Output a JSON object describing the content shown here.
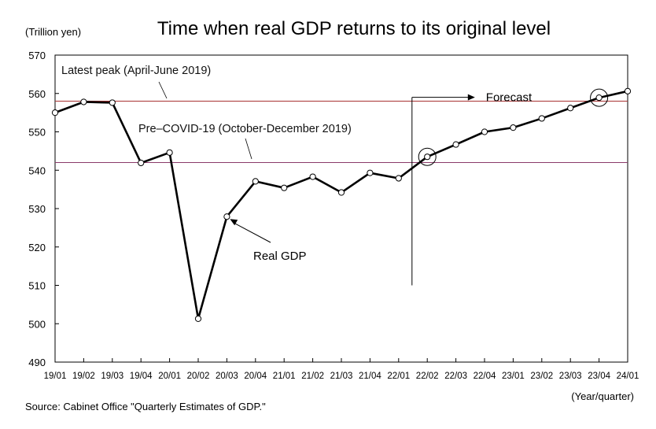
{
  "chart_data": {
    "type": "line",
    "title": "Time when real GDP returns to its original level",
    "ylabel": "(Trillion yen)",
    "xlabel": "(Year/quarter)",
    "ylim": [
      490,
      570
    ],
    "yticks": [
      "570",
      "560",
      "550",
      "540",
      "530",
      "520",
      "510",
      "500",
      "490"
    ],
    "categories": [
      "19/01",
      "19/02",
      "19/03",
      "19/04",
      "20/01",
      "20/02",
      "20/03",
      "20/04",
      "21/01",
      "21/02",
      "21/03",
      "21/04",
      "22/01",
      "22/02",
      "22/03",
      "22/04",
      "23/01",
      "23/02",
      "23/03",
      "23/04",
      "24/01"
    ],
    "series": [
      {
        "name": "Real GDP",
        "values": [
          555.0,
          557.8,
          557.6,
          541.9,
          544.6,
          501.3,
          527.9,
          537.1,
          535.4,
          538.3,
          534.2,
          539.3,
          537.9,
          543.5,
          546.7,
          550.0,
          551.1,
          553.5,
          556.2,
          558.9,
          560.6
        ]
      }
    ],
    "reference_lines": [
      {
        "label": "Latest peak (April-June 2019)",
        "value": 558.0,
        "color": "#a83232"
      },
      {
        "label": "Pre–COVID-19 (October-December 2019)",
        "value": 542.0,
        "color": "#8a3a6a"
      }
    ],
    "annotations": {
      "forecast": "Forecast",
      "forecast_start": "22/01",
      "series_label": "Real GDP",
      "series_label_points_to": "20/03",
      "highlighted_points": [
        "22/02",
        "23/04"
      ]
    },
    "grid": false,
    "source": "Source: Cabinet Office \"Quarterly Estimates of GDP.\""
  }
}
